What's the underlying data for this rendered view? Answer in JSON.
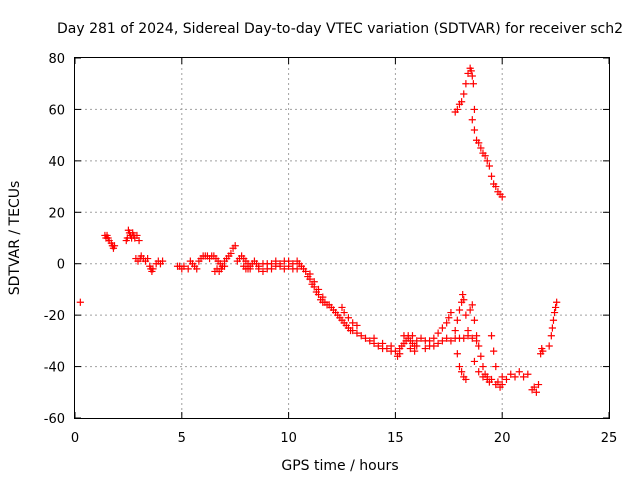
{
  "chart_data": {
    "type": "scatter",
    "title": "Day 281 of 2024, Sidereal Day-to-day VTEC variation (SDTVAR) for receiver sch2",
    "xlabel": "GPS time / hours",
    "ylabel": "SDTVAR / TECUs",
    "xlim": [
      0,
      25
    ],
    "ylim": [
      -60,
      80
    ],
    "xticks": [
      0,
      5,
      10,
      15,
      20,
      25
    ],
    "yticks": [
      -60,
      -40,
      -20,
      0,
      20,
      40,
      60,
      80
    ],
    "grid": true,
    "marker": "plus",
    "colors": {
      "series": "#ff0000",
      "axes": "#000000",
      "grid": "#a0a0a0"
    },
    "series": [
      {
        "name": "sch2",
        "points": [
          [
            0.25,
            -15
          ],
          [
            1.4,
            11
          ],
          [
            1.45,
            10
          ],
          [
            1.5,
            11
          ],
          [
            1.55,
            10
          ],
          [
            1.6,
            9
          ],
          [
            1.7,
            8
          ],
          [
            1.75,
            7
          ],
          [
            1.8,
            6
          ],
          [
            1.85,
            7
          ],
          [
            2.4,
            9
          ],
          [
            2.45,
            10
          ],
          [
            2.5,
            13
          ],
          [
            2.55,
            12
          ],
          [
            2.6,
            11
          ],
          [
            2.65,
            10
          ],
          [
            2.7,
            12
          ],
          [
            2.75,
            11
          ],
          [
            2.8,
            10
          ],
          [
            2.9,
            11
          ],
          [
            3.0,
            9
          ],
          [
            2.85,
            2
          ],
          [
            2.95,
            1
          ],
          [
            3.05,
            2
          ],
          [
            3.1,
            3
          ],
          [
            3.2,
            2
          ],
          [
            3.3,
            1
          ],
          [
            3.4,
            2
          ],
          [
            3.5,
            -1
          ],
          [
            3.55,
            -2
          ],
          [
            3.6,
            -3
          ],
          [
            3.65,
            -2
          ],
          [
            3.8,
            0
          ],
          [
            3.9,
            1
          ],
          [
            4.0,
            0
          ],
          [
            4.1,
            1
          ],
          [
            4.8,
            -1
          ],
          [
            4.9,
            -1
          ],
          [
            5.0,
            -2
          ],
          [
            5.1,
            -1
          ],
          [
            5.3,
            -2
          ],
          [
            5.4,
            1
          ],
          [
            5.5,
            0
          ],
          [
            5.6,
            -1
          ],
          [
            5.7,
            -2
          ],
          [
            5.8,
            1
          ],
          [
            5.9,
            2
          ],
          [
            6.0,
            3
          ],
          [
            6.1,
            3
          ],
          [
            6.2,
            3
          ],
          [
            6.3,
            2
          ],
          [
            6.4,
            3
          ],
          [
            6.5,
            3
          ],
          [
            6.6,
            2
          ],
          [
            6.7,
            1
          ],
          [
            6.8,
            0
          ],
          [
            6.9,
            -1
          ],
          [
            7.0,
            -1
          ],
          [
            6.55,
            -3
          ],
          [
            6.65,
            -2
          ],
          [
            6.75,
            -3
          ],
          [
            6.85,
            -2
          ],
          [
            7.0,
            1
          ],
          [
            7.1,
            2
          ],
          [
            7.2,
            3
          ],
          [
            7.3,
            4
          ],
          [
            7.4,
            6
          ],
          [
            7.5,
            7
          ],
          [
            7.6,
            1
          ],
          [
            7.7,
            2
          ],
          [
            7.8,
            3
          ],
          [
            7.9,
            2
          ],
          [
            8.0,
            1
          ],
          [
            8.1,
            0
          ],
          [
            8.2,
            -1
          ],
          [
            8.3,
            0
          ],
          [
            8.4,
            1
          ],
          [
            8.5,
            0
          ],
          [
            8.6,
            -1
          ],
          [
            7.9,
            -1
          ],
          [
            8.0,
            -2
          ],
          [
            8.1,
            -2
          ],
          [
            8.2,
            -2
          ],
          [
            8.6,
            -2
          ],
          [
            8.8,
            -3
          ],
          [
            9.0,
            -2
          ],
          [
            9.2,
            -2
          ],
          [
            9.4,
            -1
          ],
          [
            9.6,
            -1
          ],
          [
            9.8,
            -2
          ],
          [
            10.0,
            -1
          ],
          [
            10.2,
            -2
          ],
          [
            10.4,
            -2
          ],
          [
            8.8,
            0
          ],
          [
            9.0,
            0
          ],
          [
            9.2,
            0
          ],
          [
            9.4,
            1
          ],
          [
            9.6,
            0
          ],
          [
            9.8,
            1
          ],
          [
            10.0,
            1
          ],
          [
            10.2,
            0
          ],
          [
            10.4,
            1
          ],
          [
            10.5,
            0
          ],
          [
            10.6,
            -1
          ],
          [
            10.7,
            -2
          ],
          [
            10.8,
            -3
          ],
          [
            10.9,
            -5
          ],
          [
            11.0,
            -6
          ],
          [
            11.1,
            -8
          ],
          [
            11.2,
            -9
          ],
          [
            11.3,
            -11
          ],
          [
            11.4,
            -12
          ],
          [
            11.5,
            -14
          ],
          [
            11.6,
            -15
          ],
          [
            11.7,
            -15
          ],
          [
            11.8,
            -16
          ],
          [
            11.9,
            -16
          ],
          [
            12.0,
            -17
          ],
          [
            11.0,
            -4
          ],
          [
            11.2,
            -7
          ],
          [
            11.4,
            -10
          ],
          [
            11.6,
            -13
          ],
          [
            12.1,
            -18
          ],
          [
            12.2,
            -19
          ],
          [
            12.3,
            -20
          ],
          [
            12.4,
            -21
          ],
          [
            12.5,
            -22
          ],
          [
            12.6,
            -23
          ],
          [
            12.7,
            -24
          ],
          [
            12.8,
            -25
          ],
          [
            12.9,
            -26
          ],
          [
            13.0,
            -26
          ],
          [
            12.5,
            -17
          ],
          [
            12.6,
            -19
          ],
          [
            12.8,
            -21
          ],
          [
            13.0,
            -23
          ],
          [
            13.2,
            -24
          ],
          [
            13.2,
            -27
          ],
          [
            13.4,
            -28
          ],
          [
            13.6,
            -29
          ],
          [
            13.8,
            -30
          ],
          [
            14.0,
            -31
          ],
          [
            14.2,
            -32
          ],
          [
            14.4,
            -33
          ],
          [
            14.6,
            -33
          ],
          [
            14.8,
            -34
          ],
          [
            15.0,
            -34
          ],
          [
            14.0,
            -29
          ],
          [
            14.4,
            -31
          ],
          [
            14.8,
            -32
          ],
          [
            15.2,
            -35
          ],
          [
            15.1,
            -36
          ],
          [
            15.2,
            -33
          ],
          [
            15.3,
            -32
          ],
          [
            15.4,
            -31
          ],
          [
            15.5,
            -30
          ],
          [
            15.6,
            -29
          ],
          [
            15.7,
            -30
          ],
          [
            15.8,
            -31
          ],
          [
            15.9,
            -32
          ],
          [
            16.0,
            -32
          ],
          [
            15.4,
            -28
          ],
          [
            15.6,
            -28
          ],
          [
            15.8,
            -28
          ],
          [
            15.7,
            -33
          ],
          [
            15.9,
            -34
          ],
          [
            16.0,
            -30
          ],
          [
            16.2,
            -29
          ],
          [
            16.4,
            -30
          ],
          [
            16.6,
            -30
          ],
          [
            16.8,
            -29
          ],
          [
            17.0,
            -27
          ],
          [
            17.2,
            -25
          ],
          [
            17.4,
            -23
          ],
          [
            17.5,
            -21
          ],
          [
            17.6,
            -19
          ],
          [
            16.4,
            -33
          ],
          [
            16.6,
            -32
          ],
          [
            16.8,
            -32
          ],
          [
            17.0,
            -31
          ],
          [
            17.2,
            -30
          ],
          [
            17.4,
            -29
          ],
          [
            17.6,
            -30
          ],
          [
            17.8,
            -29
          ],
          [
            18.0,
            -29
          ],
          [
            18.2,
            -29
          ],
          [
            18.4,
            -28
          ],
          [
            18.6,
            -29
          ],
          [
            18.8,
            -30
          ],
          [
            17.8,
            -26
          ],
          [
            17.9,
            -22
          ],
          [
            18.0,
            -18
          ],
          [
            18.1,
            -15
          ],
          [
            18.15,
            -12
          ],
          [
            18.2,
            -14
          ],
          [
            18.3,
            -20
          ],
          [
            18.4,
            -26
          ],
          [
            17.9,
            -35
          ],
          [
            18.0,
            -40
          ],
          [
            18.1,
            -42
          ],
          [
            18.2,
            -44
          ],
          [
            18.3,
            -45
          ],
          [
            18.5,
            -18
          ],
          [
            18.6,
            -16
          ],
          [
            18.7,
            -22
          ],
          [
            18.8,
            -28
          ],
          [
            18.9,
            -32
          ],
          [
            19.0,
            -36
          ],
          [
            19.1,
            -40
          ],
          [
            19.2,
            -43
          ],
          [
            19.3,
            -45
          ],
          [
            19.4,
            -46
          ],
          [
            18.7,
            -38
          ],
          [
            18.9,
            -42
          ],
          [
            19.1,
            -44
          ],
          [
            19.3,
            -44
          ],
          [
            19.5,
            -45
          ],
          [
            19.7,
            -47
          ],
          [
            19.8,
            -46
          ],
          [
            19.9,
            -48
          ],
          [
            20.0,
            -47
          ],
          [
            19.5,
            -28
          ],
          [
            19.6,
            -34
          ],
          [
            19.7,
            -40
          ],
          [
            20.0,
            -44
          ],
          [
            20.2,
            -45
          ],
          [
            20.4,
            -43
          ],
          [
            20.6,
            -44
          ],
          [
            20.8,
            -42
          ],
          [
            21.0,
            -44
          ],
          [
            21.2,
            -43
          ],
          [
            21.4,
            -49
          ],
          [
            21.5,
            -48
          ],
          [
            21.6,
            -50
          ],
          [
            21.7,
            -47
          ],
          [
            21.8,
            -35
          ],
          [
            21.85,
            -33
          ],
          [
            21.9,
            -34
          ],
          [
            22.2,
            -32
          ],
          [
            22.3,
            -28
          ],
          [
            22.35,
            -25
          ],
          [
            22.4,
            -22
          ],
          [
            22.45,
            -19
          ],
          [
            22.5,
            -17
          ],
          [
            22.55,
            -15
          ],
          [
            17.8,
            59
          ],
          [
            17.9,
            60
          ],
          [
            18.0,
            62
          ],
          [
            18.1,
            63
          ],
          [
            18.2,
            66
          ],
          [
            18.3,
            70
          ],
          [
            18.4,
            74
          ],
          [
            18.5,
            76
          ],
          [
            18.55,
            75
          ],
          [
            18.6,
            73
          ],
          [
            18.65,
            70
          ],
          [
            18.7,
            60
          ],
          [
            18.6,
            56
          ],
          [
            18.7,
            52
          ],
          [
            18.8,
            48
          ],
          [
            18.9,
            47
          ],
          [
            19.0,
            45
          ],
          [
            19.1,
            43
          ],
          [
            19.2,
            42
          ],
          [
            19.3,
            40
          ],
          [
            19.4,
            38
          ],
          [
            19.5,
            34
          ],
          [
            19.6,
            31
          ],
          [
            19.7,
            30
          ],
          [
            19.8,
            28
          ],
          [
            19.9,
            27
          ],
          [
            20.0,
            26
          ]
        ]
      }
    ]
  }
}
